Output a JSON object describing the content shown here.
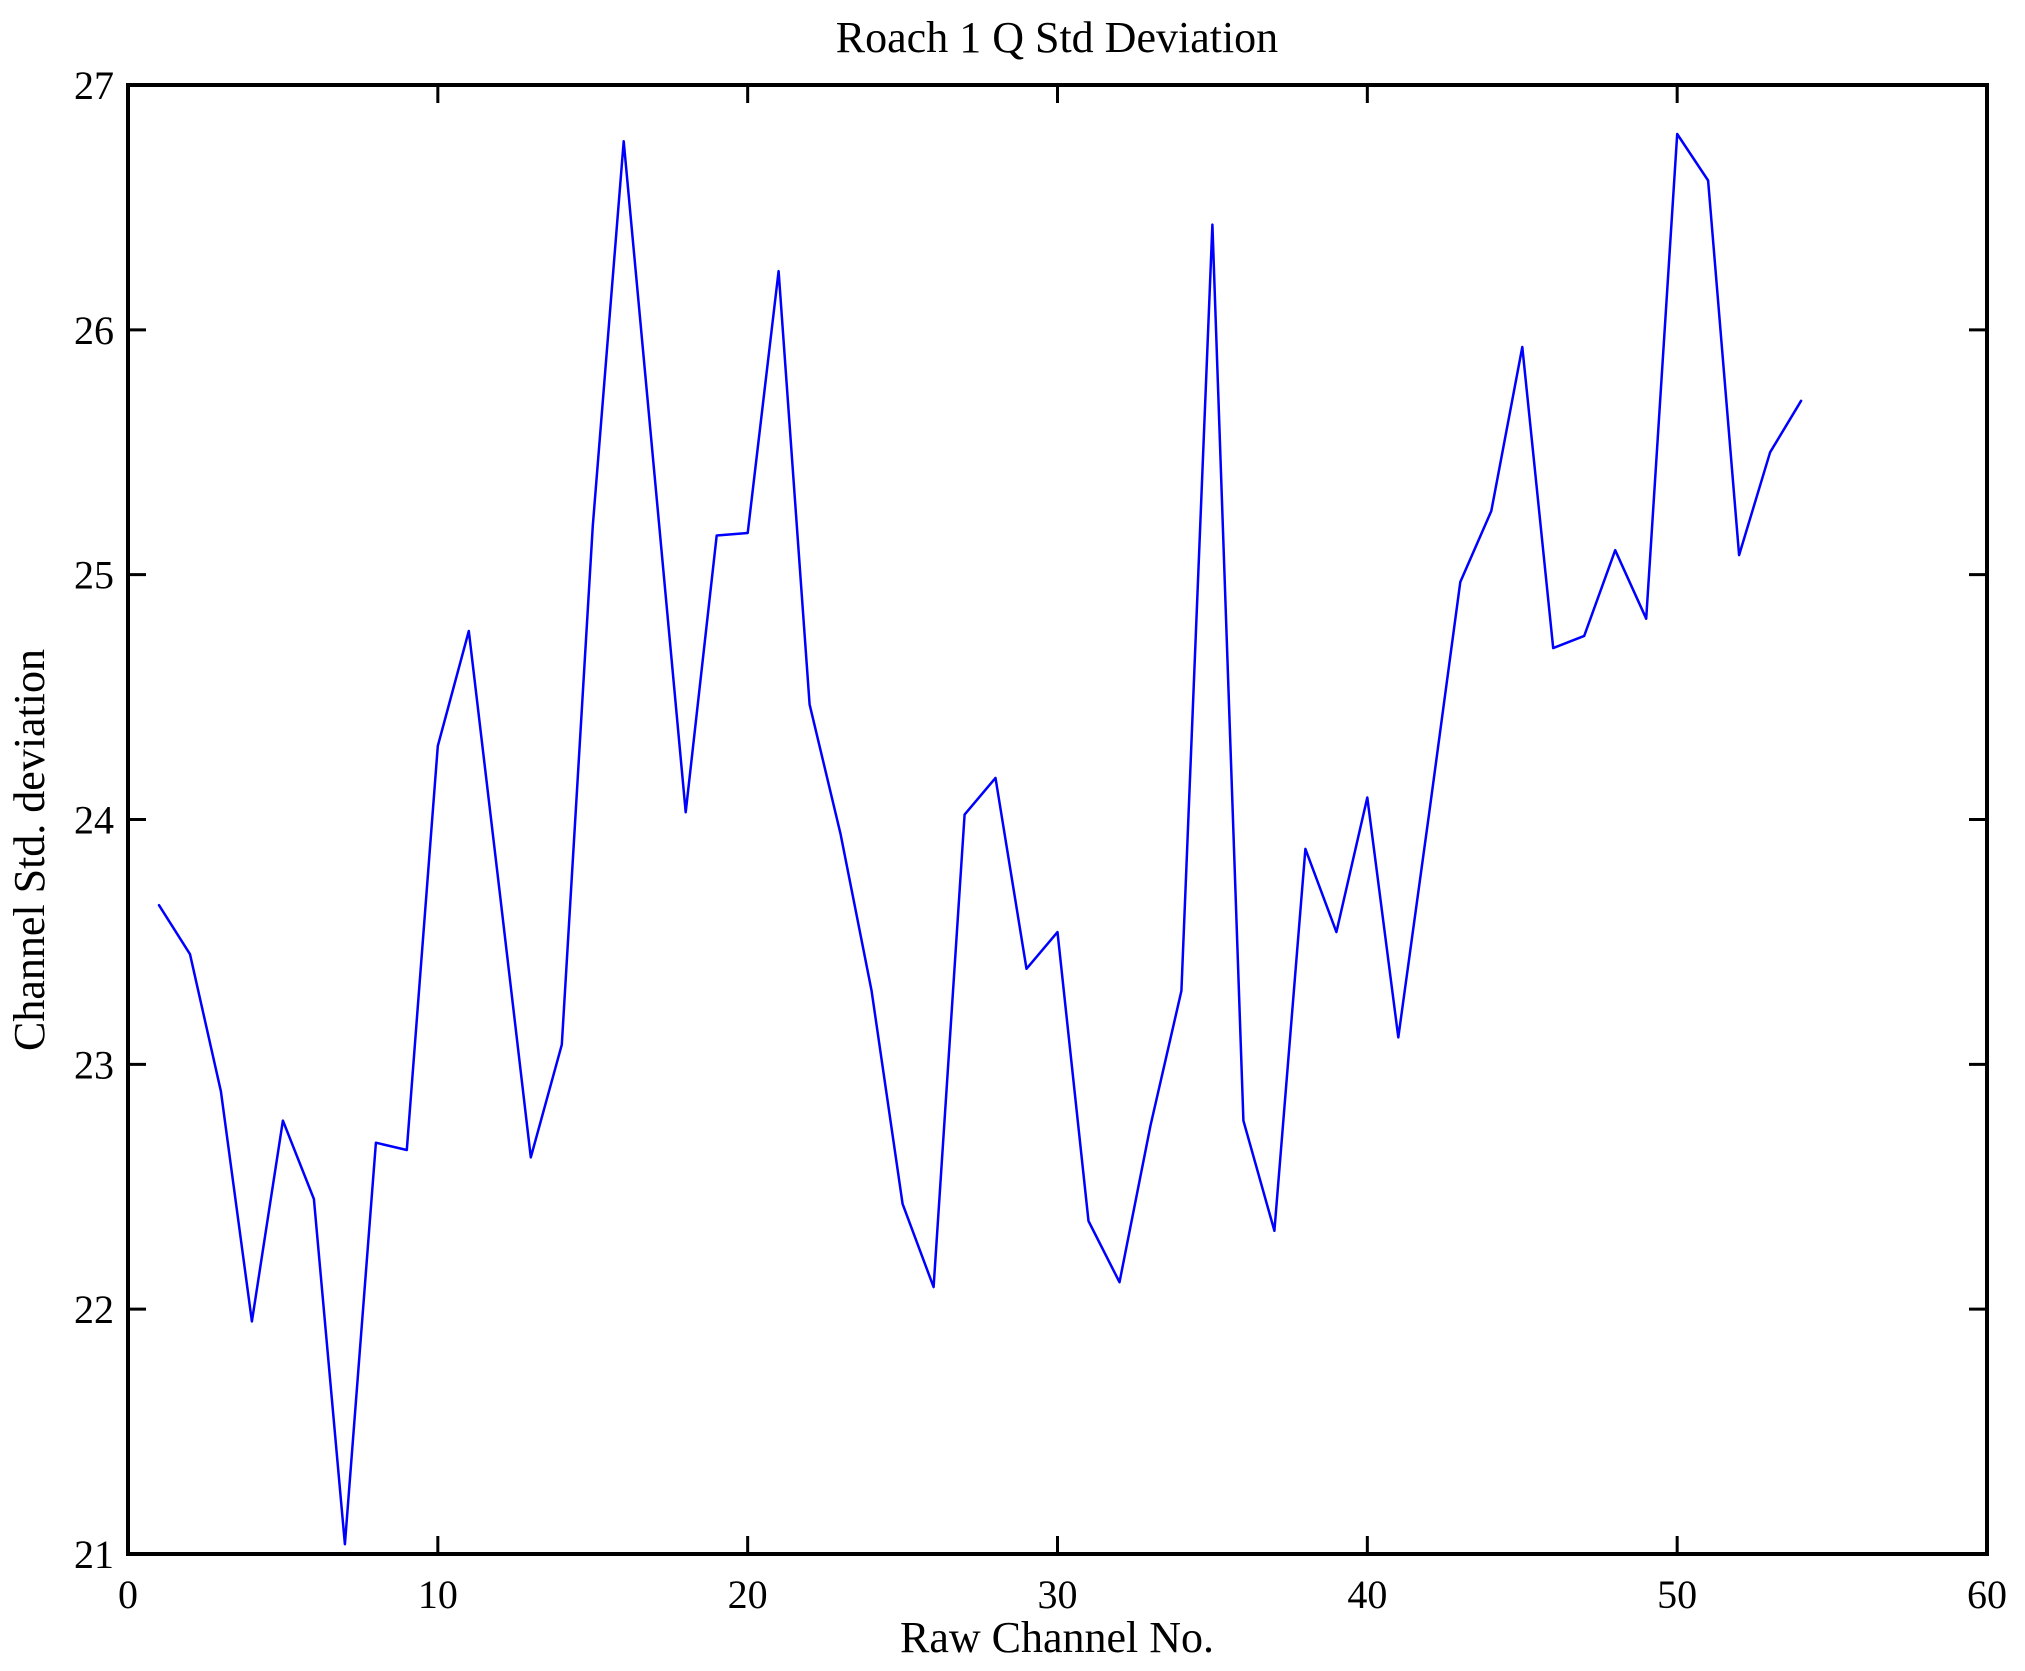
{
  "chart_data": {
    "type": "line",
    "title": "Roach 1 Q Std Deviation",
    "xlabel": "Raw Channel No.",
    "ylabel": "Channel Std. deviation",
    "xlim": [
      0,
      60
    ],
    "ylim": [
      21,
      27
    ],
    "x_ticks": [
      0,
      10,
      20,
      30,
      40,
      50,
      60
    ],
    "y_ticks": [
      21,
      22,
      23,
      24,
      25,
      26,
      27
    ],
    "grid": false,
    "legend": "none",
    "line_color": "#0000FF",
    "axis_color": "#000000",
    "x": [
      1,
      2,
      3,
      4,
      5,
      6,
      7,
      8,
      9,
      10,
      11,
      12,
      13,
      14,
      15,
      16,
      17,
      18,
      19,
      20,
      21,
      22,
      23,
      24,
      25,
      26,
      27,
      28,
      29,
      30,
      31,
      32,
      33,
      34,
      35,
      36,
      37,
      38,
      39,
      40,
      41,
      42,
      43,
      44,
      45,
      46,
      47,
      48,
      49,
      50,
      51,
      52,
      53,
      54
    ],
    "values": [
      23.65,
      23.45,
      22.89,
      21.95,
      22.77,
      22.45,
      21.04,
      22.68,
      22.65,
      24.3,
      24.77,
      23.7,
      22.62,
      23.08,
      25.2,
      26.77,
      25.4,
      24.03,
      25.16,
      25.17,
      26.24,
      24.47,
      23.94,
      23.3,
      22.43,
      22.09,
      24.02,
      24.17,
      23.39,
      23.54,
      22.36,
      22.11,
      22.75,
      23.3,
      26.43,
      22.77,
      22.32,
      23.88,
      23.54,
      24.09,
      23.11,
      24.03,
      24.97,
      25.26,
      25.93,
      24.7,
      24.75,
      25.1,
      24.82,
      26.8,
      26.61,
      25.08,
      25.5,
      25.71
    ]
  }
}
